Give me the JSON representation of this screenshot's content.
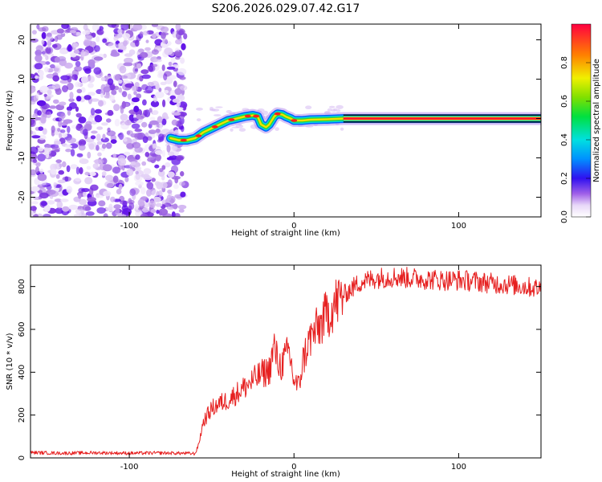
{
  "colors": {
    "snr_line": "#e62020",
    "frame": "#000000",
    "background": "#ffffff"
  },
  "chart_data": [
    {
      "id": "spectrogram",
      "type": "heatmap",
      "title": "S206.2026.029.07.42.G17",
      "xlabel": "Height of straight line (km)",
      "ylabel": "Frequency (Hz)",
      "xlim": [
        -160,
        150
      ],
      "ylim": [
        -25,
        24
      ],
      "xticks": [
        -100,
        0,
        100
      ],
      "yticks": [
        -20,
        -10,
        0,
        10,
        20
      ],
      "noise_region_x": [
        -160,
        -70
      ],
      "signal_ridge": {
        "x": [
          -75,
          -70,
          -65,
          -60,
          -55,
          -50,
          -45,
          -40,
          -35,
          -30,
          -25,
          -22,
          -20,
          -17,
          -15,
          -12,
          -10,
          -7,
          -5,
          -2,
          0,
          5,
          10,
          20,
          30,
          40,
          60,
          80,
          100,
          120,
          150
        ],
        "y": [
          -5,
          -5.5,
          -5.5,
          -5,
          -3.5,
          -2.5,
          -1.5,
          -0.5,
          0,
          0.5,
          0.8,
          0.5,
          -1.5,
          -2.2,
          -1.5,
          0.5,
          1.2,
          1,
          0.5,
          0,
          -0.5,
          -0.5,
          -0.3,
          -0.2,
          0,
          0,
          0,
          0,
          0,
          0,
          0
        ]
      },
      "colorbar": {
        "label": "Normalized spectral amplitude",
        "range": [
          0,
          1
        ],
        "ticks": [
          0.0,
          0.2,
          0.4,
          0.6,
          0.8
        ]
      }
    },
    {
      "id": "snr",
      "type": "line",
      "xlabel": "Height of straight line (km)",
      "ylabel": "SNR (10 * v/v)",
      "xlim": [
        -160,
        150
      ],
      "ylim": [
        0,
        900
      ],
      "xticks": [
        -100,
        0,
        100
      ],
      "yticks": [
        0,
        200,
        400,
        600,
        800
      ],
      "series": [
        {
          "name": "SNR",
          "x": [
            -160,
            -140,
            -120,
            -100,
            -80,
            -70,
            -60,
            -58,
            -55,
            -50,
            -45,
            -40,
            -35,
            -30,
            -25,
            -20,
            -15,
            -12,
            -10,
            -8,
            -5,
            -3,
            0,
            3,
            5,
            8,
            10,
            15,
            20,
            25,
            30,
            35,
            40,
            50,
            60,
            70,
            80,
            90,
            100,
            110,
            120,
            130,
            140,
            150
          ],
          "values": [
            25,
            22,
            24,
            22,
            23,
            22,
            20,
            60,
            170,
            230,
            255,
            270,
            300,
            330,
            360,
            390,
            410,
            520,
            450,
            430,
            470,
            500,
            360,
            330,
            440,
            520,
            560,
            610,
            670,
            720,
            760,
            790,
            820,
            840,
            845,
            840,
            835,
            830,
            830,
            825,
            815,
            810,
            800,
            790
          ]
        }
      ]
    }
  ]
}
